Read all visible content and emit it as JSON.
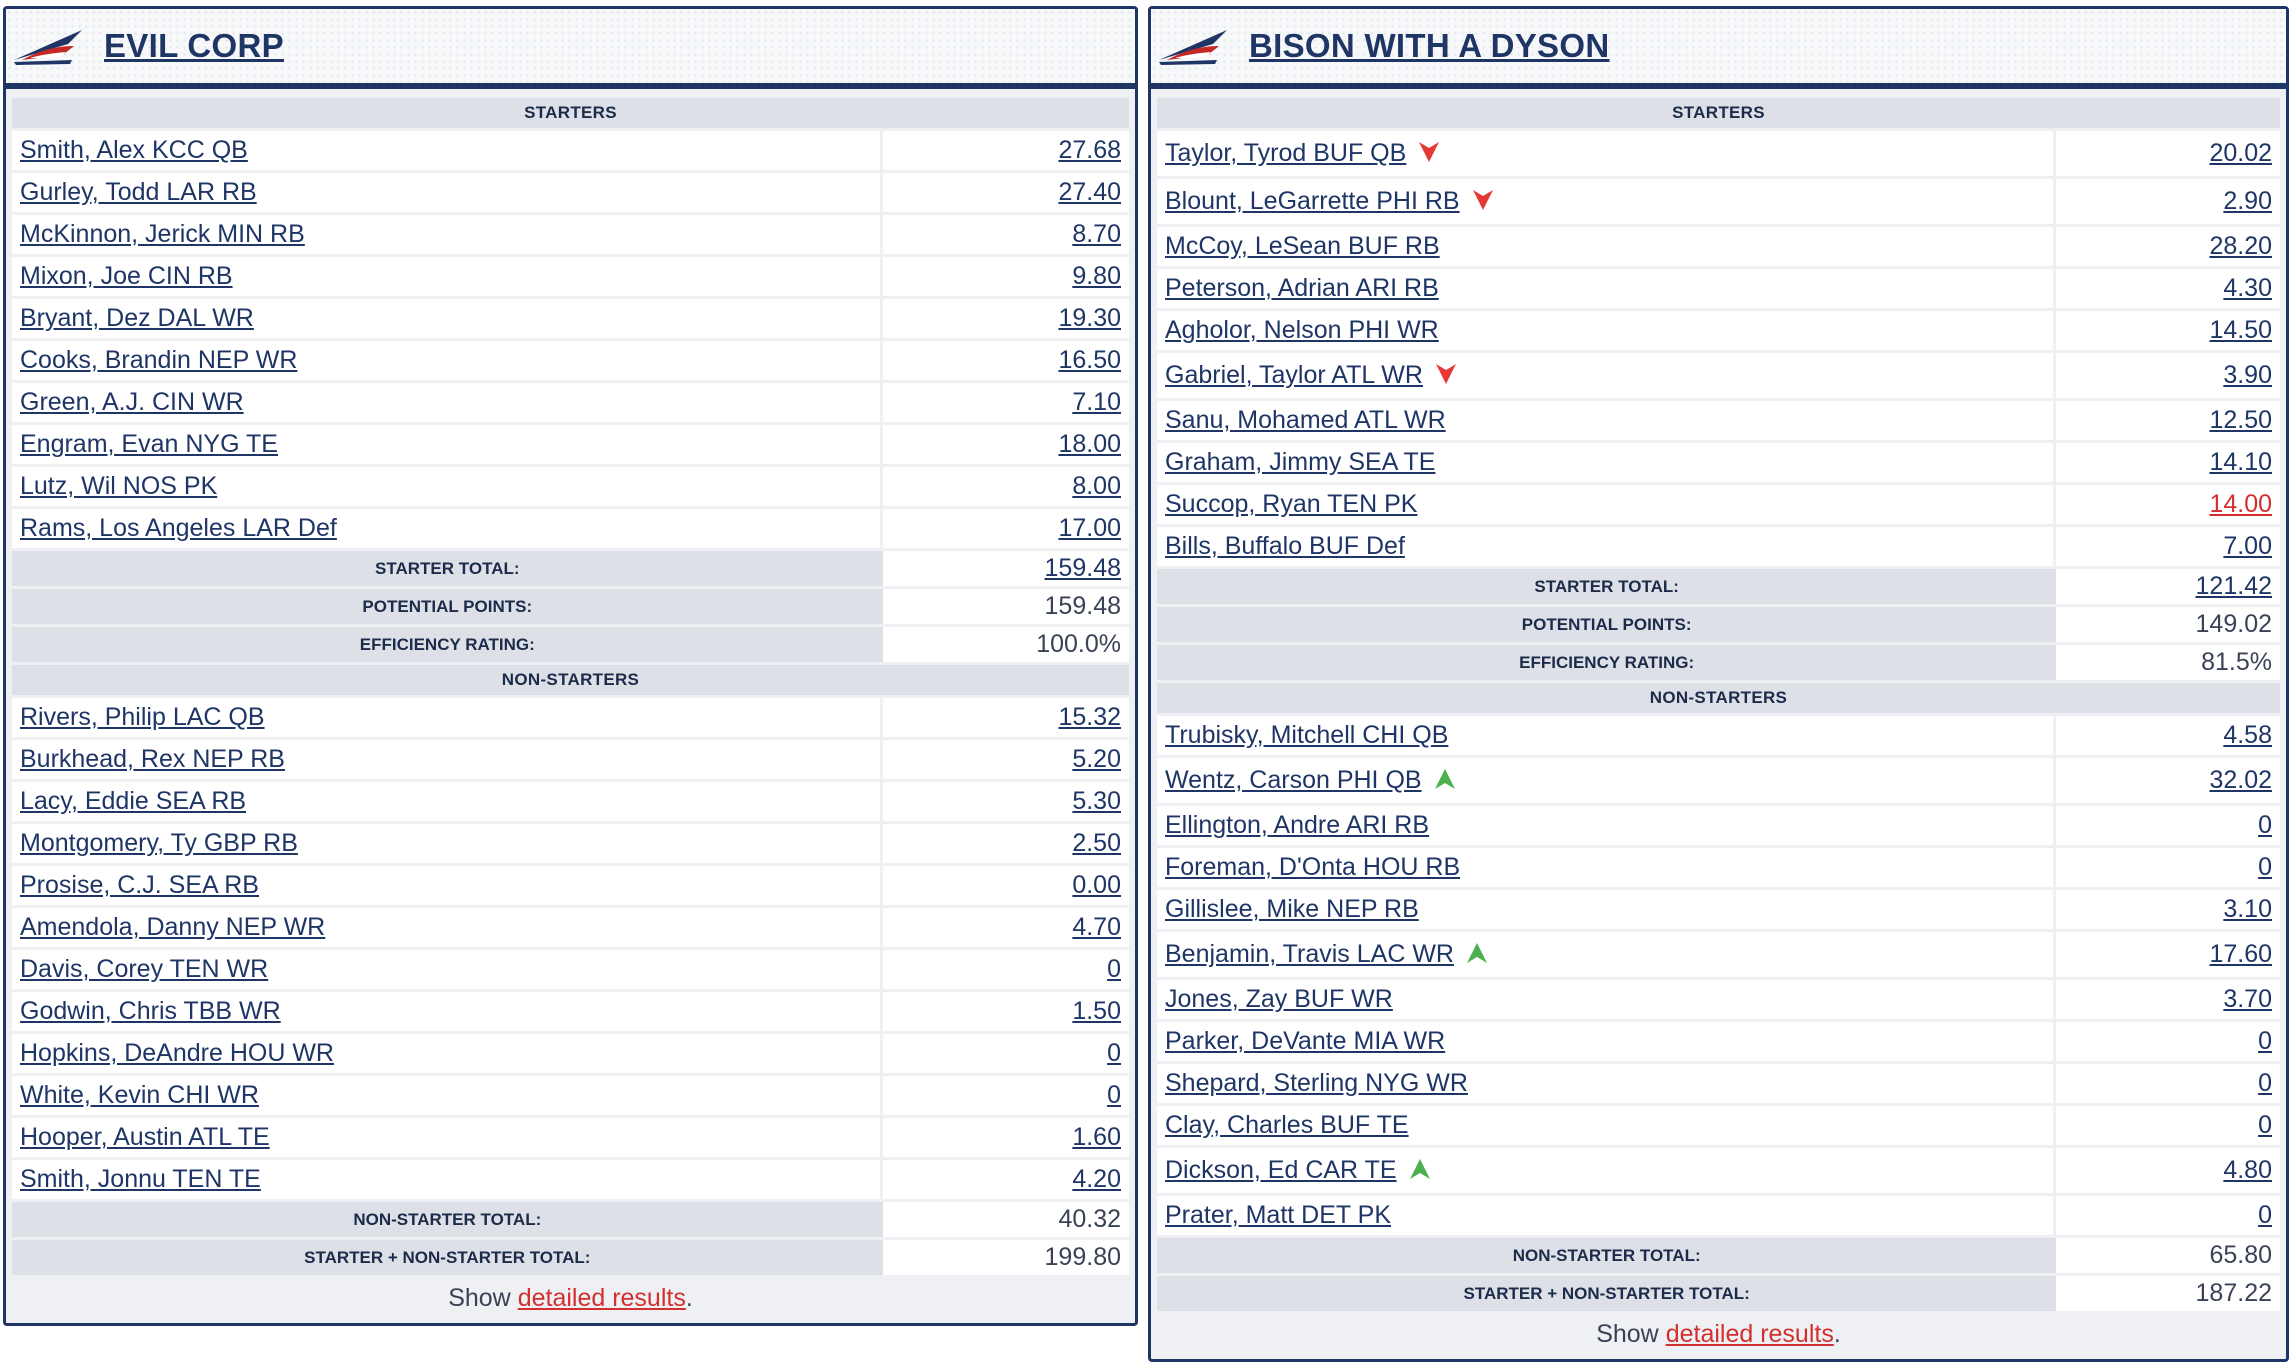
{
  "left": {
    "team_name": "EVIL CORP",
    "starters_heading": "STARTERS",
    "starters": [
      {
        "name": "Smith, Alex KCC QB",
        "points": "27.68"
      },
      {
        "name": "Gurley, Todd LAR RB",
        "points": "27.40"
      },
      {
        "name": "McKinnon, Jerick MIN RB",
        "points": "8.70"
      },
      {
        "name": "Mixon, Joe CIN RB",
        "points": "9.80"
      },
      {
        "name": "Bryant, Dez DAL WR",
        "points": "19.30"
      },
      {
        "name": "Cooks, Brandin NEP WR",
        "points": "16.50"
      },
      {
        "name": "Green, A.J. CIN WR",
        "points": "7.10"
      },
      {
        "name": "Engram, Evan NYG TE",
        "points": "18.00"
      },
      {
        "name": "Lutz, Wil NOS PK",
        "points": "8.00"
      },
      {
        "name": "Rams, Los Angeles LAR Def",
        "points": "17.00"
      }
    ],
    "starter_total_label": "STARTER TOTAL:",
    "starter_total": "159.48",
    "potential_label": "POTENTIAL POINTS:",
    "potential": "159.48",
    "efficiency_label": "EFFICIENCY RATING:",
    "efficiency": "100.0%",
    "nonstarters_heading": "NON-STARTERS",
    "nonstarters": [
      {
        "name": "Rivers, Philip LAC QB",
        "points": "15.32"
      },
      {
        "name": "Burkhead, Rex NEP RB",
        "points": "5.20"
      },
      {
        "name": "Lacy, Eddie SEA RB",
        "points": "5.30"
      },
      {
        "name": "Montgomery, Ty GBP RB",
        "points": "2.50"
      },
      {
        "name": "Prosise, C.J. SEA RB",
        "points": "0.00"
      },
      {
        "name": "Amendola, Danny NEP WR",
        "points": "4.70"
      },
      {
        "name": "Davis, Corey TEN WR",
        "points": "0"
      },
      {
        "name": "Godwin, Chris TBB WR",
        "points": "1.50"
      },
      {
        "name": "Hopkins, DeAndre HOU WR",
        "points": "0"
      },
      {
        "name": "White, Kevin CHI WR",
        "points": "0"
      },
      {
        "name": "Hooper, Austin ATL TE",
        "points": "1.60"
      },
      {
        "name": "Smith, Jonnu TEN TE",
        "points": "4.20"
      }
    ],
    "nonstarter_total_label": "NON-STARTER TOTAL:",
    "nonstarter_total": "40.32",
    "grand_total_label": "STARTER + NON-STARTER TOTAL:",
    "grand_total": "199.80",
    "footer_prefix": "Show ",
    "footer_link": "detailed results",
    "footer_suffix": "."
  },
  "right": {
    "team_name": "BISON WITH A DYSON",
    "starters_heading": "STARTERS",
    "starters": [
      {
        "name": "Taylor, Tyrod BUF QB",
        "points": "20.02",
        "arrow": "down"
      },
      {
        "name": "Blount, LeGarrette PHI RB",
        "points": "2.90",
        "arrow": "down"
      },
      {
        "name": "McCoy, LeSean BUF RB",
        "points": "28.20"
      },
      {
        "name": "Peterson, Adrian ARI RB",
        "points": "4.30"
      },
      {
        "name": "Agholor, Nelson PHI WR",
        "points": "14.50"
      },
      {
        "name": "Gabriel, Taylor ATL WR",
        "points": "3.90",
        "arrow": "down"
      },
      {
        "name": "Sanu, Mohamed ATL WR",
        "points": "12.50"
      },
      {
        "name": "Graham, Jimmy SEA TE",
        "points": "14.10"
      },
      {
        "name": "Succop, Ryan TEN PK",
        "points": "14.00",
        "highlight": "red"
      },
      {
        "name": "Bills, Buffalo BUF Def",
        "points": "7.00"
      }
    ],
    "starter_total_label": "STARTER TOTAL:",
    "starter_total": "121.42",
    "potential_label": "POTENTIAL POINTS:",
    "potential": "149.02",
    "efficiency_label": "EFFICIENCY RATING:",
    "efficiency": "81.5%",
    "nonstarters_heading": "NON-STARTERS",
    "nonstarters": [
      {
        "name": "Trubisky, Mitchell CHI QB",
        "points": "4.58"
      },
      {
        "name": "Wentz, Carson PHI QB",
        "points": "32.02",
        "arrow": "up"
      },
      {
        "name": "Ellington, Andre ARI RB",
        "points": "0"
      },
      {
        "name": "Foreman, D'Onta HOU RB",
        "points": "0"
      },
      {
        "name": "Gillislee, Mike NEP RB",
        "points": "3.10"
      },
      {
        "name": "Benjamin, Travis LAC WR",
        "points": "17.60",
        "arrow": "up"
      },
      {
        "name": "Jones, Zay BUF WR",
        "points": "3.70"
      },
      {
        "name": "Parker, DeVante MIA WR",
        "points": "0"
      },
      {
        "name": "Shepard, Sterling NYG WR",
        "points": "0"
      },
      {
        "name": "Clay, Charles BUF TE",
        "points": "0"
      },
      {
        "name": "Dickson, Ed CAR TE",
        "points": "4.80",
        "arrow": "up"
      },
      {
        "name": "Prater, Matt DET PK",
        "points": "0"
      }
    ],
    "nonstarter_total_label": "NON-STARTER TOTAL:",
    "nonstarter_total": "65.80",
    "grand_total_label": "STARTER + NON-STARTER TOTAL:",
    "grand_total": "187.22",
    "footer_prefix": "Show ",
    "footer_link": "detailed results",
    "footer_suffix": "."
  },
  "icons": {
    "team_logo": "team-logo-icon",
    "arrow_down": "arrow-down-icon",
    "arrow_up": "arrow-up-icon"
  },
  "colors": {
    "navy": "#1f3566",
    "arrow_down": "#e53935",
    "arrow_up": "#4caf50",
    "link_red": "#d32f2f",
    "label_bg": "#dde1e7"
  }
}
